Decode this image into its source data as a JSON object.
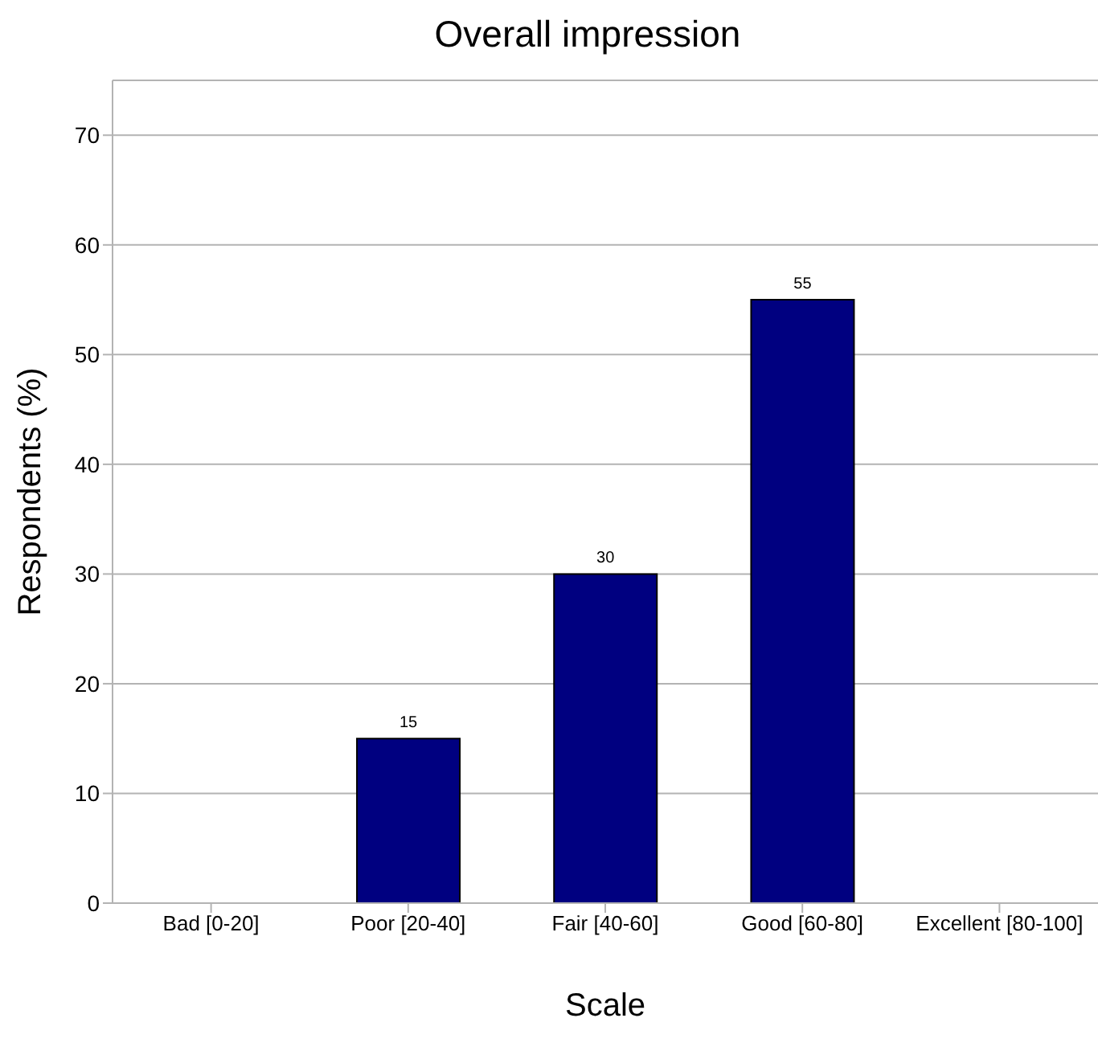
{
  "chart_data": {
    "type": "bar",
    "title": "Overall impression",
    "xlabel": "Scale",
    "ylabel": "Respondents (%)",
    "categories": [
      "Bad [0-20]",
      "Poor [20-40]",
      "Fair [40-60]",
      "Good [60-80]",
      "Excellent [80-100]"
    ],
    "values": [
      0,
      15,
      30,
      55,
      0
    ],
    "value_labels": [
      null,
      "15",
      "30",
      "55",
      null
    ],
    "color": "#000080",
    "ylim": [
      0,
      75
    ],
    "yticks": [
      0,
      10,
      20,
      30,
      40,
      50,
      60,
      70
    ],
    "grid": "y"
  }
}
